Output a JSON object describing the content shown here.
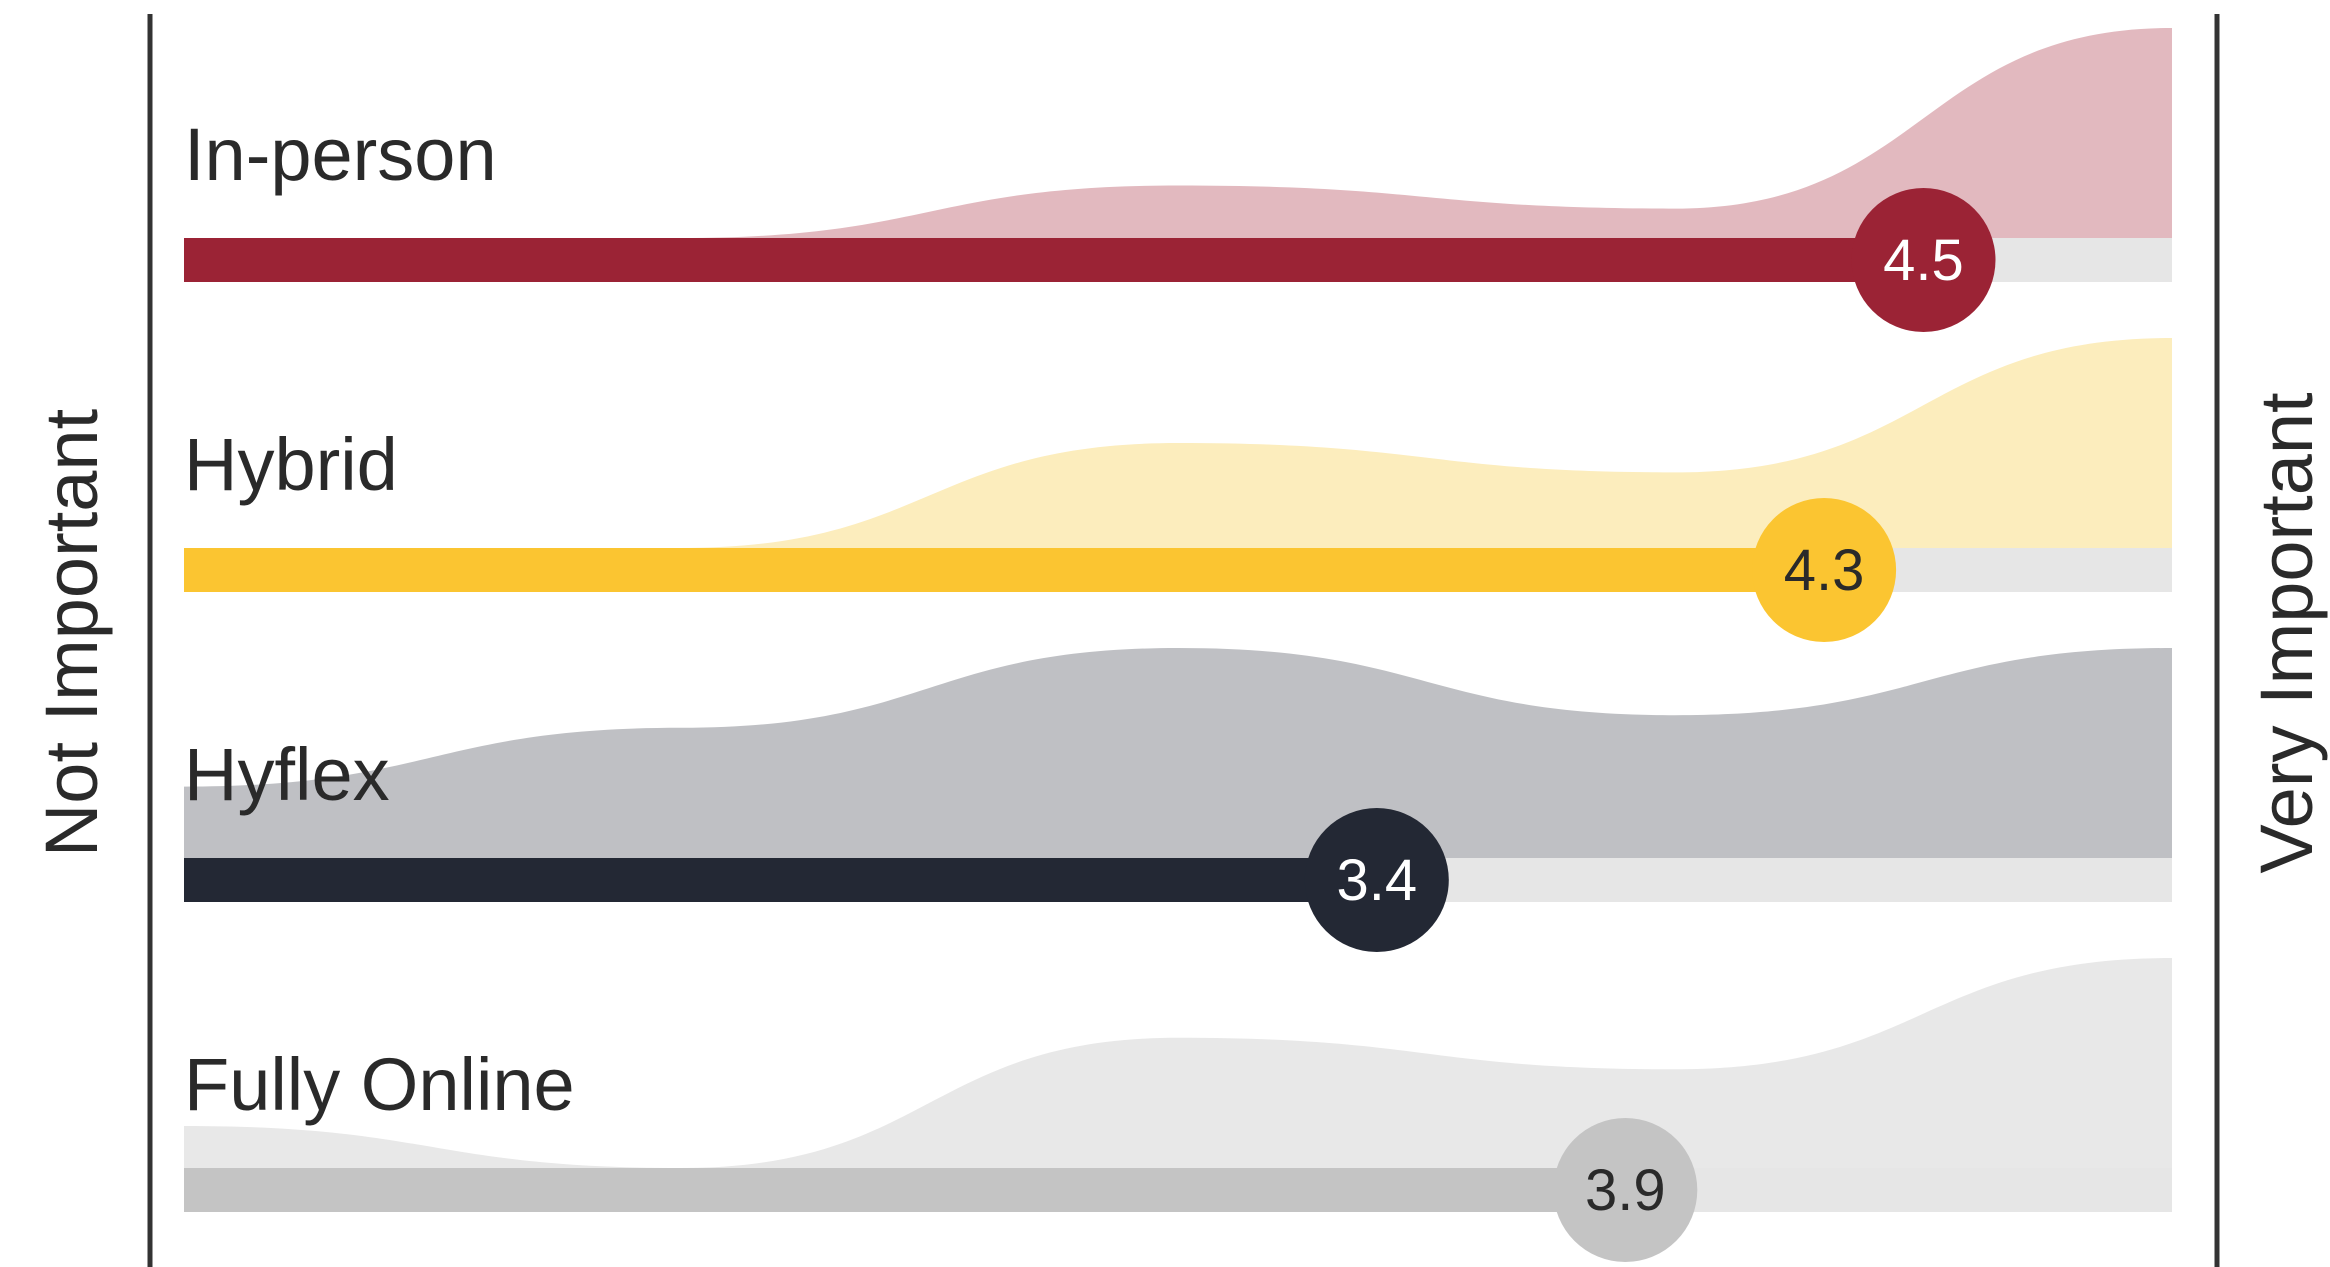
{
  "chart_data": {
    "type": "area",
    "x": [
      1,
      2,
      3,
      4,
      5
    ],
    "xlim": [
      1,
      5
    ],
    "left_axis_label": "Not Important",
    "right_axis_label": "Very Important",
    "series": [
      {
        "name": "In-person",
        "mean": 4.5,
        "mean_label": "4.5",
        "distribution": [
          0,
          0,
          0.25,
          0.14,
          1
        ],
        "color": "#9b2335",
        "fill_color": "#e2b9bf",
        "value_text_color": "#ffffff"
      },
      {
        "name": "Hybrid",
        "mean": 4.3,
        "mean_label": "4.3",
        "distribution": [
          0,
          0,
          0.5,
          0.36,
          1
        ],
        "color": "#fbc531",
        "fill_color": "#fcedbd",
        "value_text_color": "#2a2a2a"
      },
      {
        "name": "Hyflex",
        "mean": 3.4,
        "mean_label": "3.4",
        "distribution": [
          0.34,
          0.62,
          1,
          0.68,
          1
        ],
        "color": "#232834",
        "fill_color": "#bfc0c4",
        "value_text_color": "#ffffff"
      },
      {
        "name": "Fully Online",
        "mean": 3.9,
        "mean_label": "3.9",
        "distribution": [
          0.2,
          0,
          0.62,
          0.47,
          1
        ],
        "color": "#c4c4c4",
        "fill_color": "#e8e8e8",
        "value_text_color": "#2a2a2a"
      }
    ]
  },
  "colors": {
    "track": "#e6e6e6",
    "axis_line": "#333333"
  }
}
